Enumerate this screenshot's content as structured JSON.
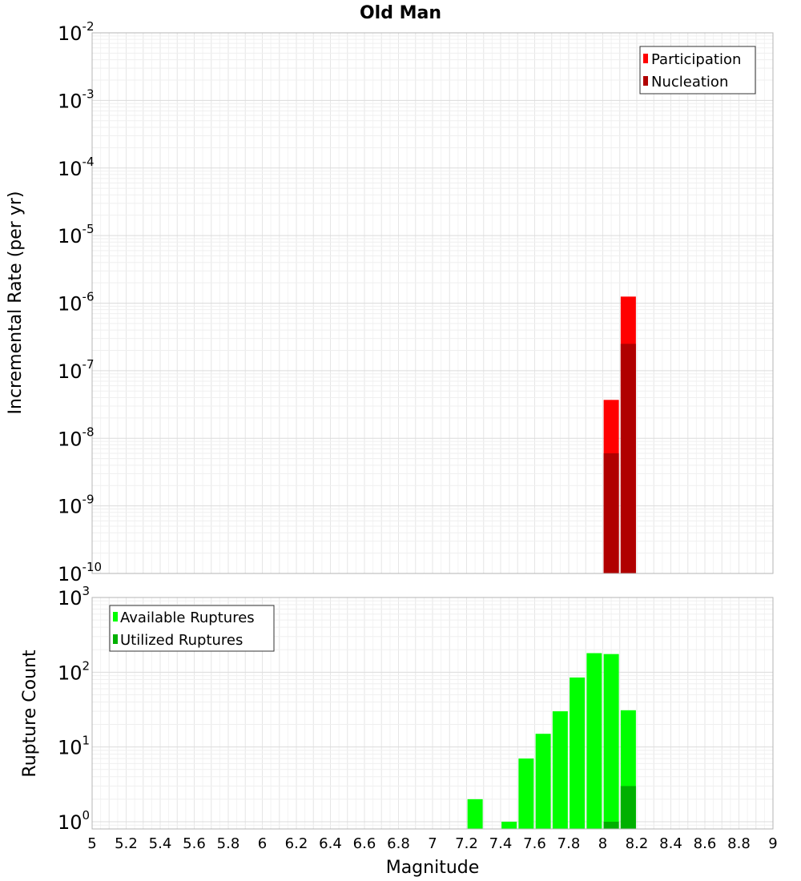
{
  "chart_data": [
    {
      "type": "bar",
      "title": "Old Man",
      "ylabel": "Incremental Rate (per yr)",
      "xlabel": "",
      "x_range": [
        5,
        9
      ],
      "ylim": [
        1e-10,
        0.01
      ],
      "y_scale": "log",
      "y_ticks": [
        {
          "base": "10",
          "exp": "-10",
          "value": 1e-10
        },
        {
          "base": "10",
          "exp": "-9",
          "value": 1e-09
        },
        {
          "base": "10",
          "exp": "-8",
          "value": 1e-08
        },
        {
          "base": "10",
          "exp": "-7",
          "value": 1e-07
        },
        {
          "base": "10",
          "exp": "-6",
          "value": 1e-06
        },
        {
          "base": "10",
          "exp": "-5",
          "value": 1e-05
        },
        {
          "base": "10",
          "exp": "-4",
          "value": 0.0001
        },
        {
          "base": "10",
          "exp": "-3",
          "value": 0.001
        },
        {
          "base": "10",
          "exp": "-2",
          "value": 0.01
        }
      ],
      "grid": true,
      "legend_position": "top-right",
      "series": [
        {
          "name": "Participation",
          "color": "#ff0000",
          "points": [
            {
              "x": 8.05,
              "y": 3.7e-08
            },
            {
              "x": 8.15,
              "y": 1.25e-06
            }
          ]
        },
        {
          "name": "Nucleation",
          "color": "#b00000",
          "points": [
            {
              "x": 8.05,
              "y": 6e-09
            },
            {
              "x": 8.15,
              "y": 2.5e-07
            }
          ]
        }
      ]
    },
    {
      "type": "bar",
      "title": "",
      "ylabel": "Rupture Count",
      "xlabel": "Magnitude",
      "x_range": [
        5,
        9
      ],
      "x_ticks": [
        "5",
        "5.2",
        "5.4",
        "5.6",
        "5.8",
        "6",
        "6.2",
        "6.4",
        "6.6",
        "6.8",
        "7",
        "7.2",
        "7.4",
        "7.6",
        "7.8",
        "8",
        "8.2",
        "8.4",
        "8.6",
        "8.8",
        "9"
      ],
      "ylim": [
        0.8,
        1000
      ],
      "y_scale": "log",
      "y_ticks": [
        {
          "base": "10",
          "exp": "0",
          "value": 1
        },
        {
          "base": "10",
          "exp": "1",
          "value": 10
        },
        {
          "base": "10",
          "exp": "2",
          "value": 100
        },
        {
          "base": "10",
          "exp": "3",
          "value": 1000
        }
      ],
      "grid": true,
      "legend_position": "top-left",
      "series": [
        {
          "name": "Available Ruptures",
          "color": "#00ff00",
          "points": [
            {
              "x": 7.25,
              "y": 2
            },
            {
              "x": 7.45,
              "y": 1
            },
            {
              "x": 7.55,
              "y": 7
            },
            {
              "x": 7.65,
              "y": 15
            },
            {
              "x": 7.75,
              "y": 30
            },
            {
              "x": 7.85,
              "y": 85
            },
            {
              "x": 7.95,
              "y": 180
            },
            {
              "x": 8.05,
              "y": 175
            },
            {
              "x": 8.15,
              "y": 31
            }
          ]
        },
        {
          "name": "Utilized Ruptures",
          "color": "#00b000",
          "points": [
            {
              "x": 8.05,
              "y": 1
            },
            {
              "x": 8.15,
              "y": 3
            }
          ]
        }
      ]
    }
  ]
}
